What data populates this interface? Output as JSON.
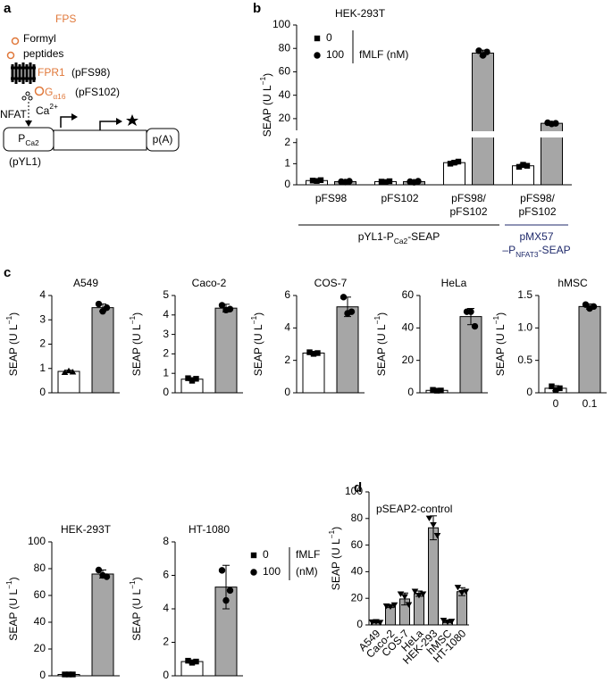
{
  "panel_labels": [
    "a",
    "b",
    "c",
    "d"
  ],
  "diagram": {
    "fps": "FPS",
    "peptides": [
      "Formyl",
      "peptides"
    ],
    "receptor": "FPR1",
    "receptor_plasmid": "(pFS98)",
    "g_protein": {
      "main": "G",
      "sub": "α16"
    },
    "g_plasmid": "(pFS102)",
    "calcium": {
      "main": "Ca",
      "sup": "2+"
    },
    "nfat": "NFAT",
    "promoter": {
      "main": "P",
      "sub": "Ca2"
    },
    "promoter_plasmid": "(pYL1)",
    "polya": "p(A)"
  },
  "chart_data": [
    {
      "type": "bar",
      "title": "HEK-293T",
      "categories": [
        [
          "pFS98"
        ],
        [
          "pFS102"
        ],
        [
          "pFS98/",
          "pFS102"
        ],
        [
          "pFS98/",
          "pFS102"
        ]
      ],
      "series": [
        {
          "name": "0",
          "color": "#ffffff",
          "marker": "square",
          "values": [
            0.2,
            0.15,
            1.05,
            0.9
          ],
          "errors": [
            0.03,
            0.03,
            0.08,
            0.08
          ],
          "points": [
            [
              0.2,
              0.18,
              0.22
            ],
            [
              0.15,
              0.13,
              0.17
            ],
            [
              1.0,
              1.05,
              1.1
            ],
            [
              0.85,
              0.95,
              0.9
            ]
          ]
        },
        {
          "name": "100",
          "color": "#a6a6a6",
          "marker": "circle",
          "values": [
            0.15,
            0.15,
            76,
            16
          ],
          "errors": [
            0.03,
            0.03,
            2.5,
            0.6
          ],
          "points": [
            [
              0.15,
              0.13,
              0.17
            ],
            [
              0.15,
              0.12,
              0.17
            ],
            [
              78,
              74,
              77
            ],
            [
              16.5,
              15.5,
              16
            ]
          ]
        }
      ],
      "legend_title": "fMLF (nM)",
      "y_label": [
        {
          "text": "SEAP (U L"
        },
        {
          "text": "−1",
          "sup": true
        },
        {
          "text": ")"
        }
      ],
      "ylim": [
        0,
        100
      ],
      "y_break": [
        2.2,
        10
      ],
      "yticks": [
        0,
        1,
        2,
        20,
        40,
        60,
        80,
        100
      ],
      "groups": [
        {
          "label": [
            [
              {
                "text": "pYL1-P"
              },
              {
                "text": "Ca2",
                "sub": true
              },
              {
                "text": "-SEAP"
              }
            ]
          ],
          "color": "#000000"
        },
        {
          "label": [
            [
              {
                "text": "pMX57"
              }
            ],
            [
              {
                "text": "–P"
              },
              {
                "text": "NFAT3",
                "sub": true
              },
              {
                "text": "-SEAP"
              }
            ]
          ],
          "color": "#1f2a6b"
        }
      ]
    },
    {
      "type": "bar",
      "title": "A549",
      "categories": [
        null,
        null
      ],
      "values": [
        0.88,
        3.5
      ],
      "errors": [
        0.05,
        0.15
      ],
      "points": [
        [
          0.85,
          0.92,
          0.87
        ],
        [
          3.65,
          3.35,
          3.5
        ]
      ],
      "colors": [
        "#ffffff",
        "#a6a6a6"
      ],
      "markers": [
        "triangle",
        "circle"
      ],
      "y_label": [
        {
          "text": "SEAP (U L"
        },
        {
          "text": "−1",
          "sup": true
        },
        {
          "text": ")"
        }
      ],
      "ylim": [
        0,
        4
      ],
      "yticks": [
        0,
        1,
        2,
        3,
        4
      ]
    },
    {
      "type": "bar",
      "title": "Caco-2",
      "categories": [
        null,
        null
      ],
      "values": [
        0.7,
        4.35
      ],
      "errors": [
        0.08,
        0.2
      ],
      "points": [
        [
          0.75,
          0.62,
          0.72
        ],
        [
          4.5,
          4.25,
          4.3
        ]
      ],
      "colors": [
        "#ffffff",
        "#a6a6a6"
      ],
      "markers": [
        "square",
        "circle"
      ],
      "y_label": [
        {
          "text": "SEAP (U L"
        },
        {
          "text": "−1",
          "sup": true
        },
        {
          "text": ")"
        }
      ],
      "ylim": [
        0,
        5
      ],
      "yticks": [
        0,
        1,
        2,
        3,
        4,
        5
      ]
    },
    {
      "type": "bar",
      "title": "COS-7",
      "categories": [
        null,
        null
      ],
      "values": [
        2.45,
        5.3
      ],
      "errors": [
        0.1,
        0.6
      ],
      "points": [
        [
          2.5,
          2.4,
          2.45
        ],
        [
          5.9,
          4.9,
          5.0
        ]
      ],
      "colors": [
        "#ffffff",
        "#a6a6a6"
      ],
      "markers": [
        "square",
        "circle"
      ],
      "y_label": [
        {
          "text": "SEAP (U L"
        },
        {
          "text": "−1",
          "sup": true
        },
        {
          "text": ")"
        }
      ],
      "ylim": [
        0,
        6
      ],
      "yticks": [
        0,
        2,
        4,
        6
      ]
    },
    {
      "type": "bar",
      "title": "HeLa",
      "categories": [
        null,
        null
      ],
      "values": [
        1.5,
        47
      ],
      "errors": [
        0.4,
        5
      ],
      "points": [
        [
          1.8,
          1.3,
          1.4
        ],
        [
          50,
          50,
          41
        ]
      ],
      "colors": [
        "#ffffff",
        "#a6a6a6"
      ],
      "markers": [
        "square",
        "circle"
      ],
      "y_label": [
        {
          "text": "SEAP (U L"
        },
        {
          "text": "−1",
          "sup": true
        },
        {
          "text": ")"
        }
      ],
      "ylim": [
        0,
        60
      ],
      "yticks": [
        0,
        20,
        40,
        60
      ]
    },
    {
      "type": "bar",
      "title": "hMSC",
      "categories": [
        "0",
        "0.1"
      ],
      "values": [
        0.07,
        1.33
      ],
      "errors": [
        0.04,
        0.04
      ],
      "points": [
        [
          0.1,
          0.04,
          0.07
        ],
        [
          1.36,
          1.3,
          1.33
        ]
      ],
      "colors": [
        "#ffffff",
        "#a6a6a6"
      ],
      "markers": [
        "square",
        "circle"
      ],
      "y_label": [
        {
          "text": "SEAP (U L"
        },
        {
          "text": "−1",
          "sup": true
        },
        {
          "text": ")"
        }
      ],
      "ylim": [
        0,
        1.5
      ],
      "yticks": [
        0,
        0.5,
        {
          "value": 1,
          "label": "1.0"
        },
        1.5
      ]
    },
    {
      "type": "bar",
      "title": "HEK-293T",
      "categories": [
        null,
        null
      ],
      "values": [
        1,
        76
      ],
      "errors": [
        0.3,
        3
      ],
      "points": [
        [
          1,
          1,
          1
        ],
        [
          79,
          75,
          74
        ]
      ],
      "colors": [
        "#ffffff",
        "#a6a6a6"
      ],
      "markers": [
        "square",
        "circle"
      ],
      "y_label": [
        {
          "text": "SEAP (U L"
        },
        {
          "text": "−1",
          "sup": true
        },
        {
          "text": ")"
        }
      ],
      "ylim": [
        0,
        100
      ],
      "yticks": [
        0,
        20,
        40,
        60,
        80,
        100
      ]
    },
    {
      "type": "bar",
      "title": "HT-1080",
      "categories": [
        null,
        null
      ],
      "values": [
        0.85,
        5.3
      ],
      "errors": [
        0.1,
        1.3
      ],
      "points": [
        [
          0.9,
          0.78,
          0.85
        ],
        [
          6.3,
          4.5,
          5.1
        ]
      ],
      "colors": [
        "#ffffff",
        "#a6a6a6"
      ],
      "markers": [
        "square",
        "circle"
      ],
      "legend": {
        "entries": [
          {
            "name": "0",
            "marker": "square"
          },
          {
            "name": "100",
            "marker": "circle"
          }
        ],
        "title": [
          "fMLF",
          "(nM)"
        ]
      },
      "y_label": [
        {
          "text": "SEAP (U L"
        },
        {
          "text": "−1",
          "sup": true
        },
        {
          "text": ")"
        }
      ],
      "ylim": [
        0,
        8
      ],
      "yticks": [
        0,
        2,
        4,
        6,
        8
      ]
    },
    {
      "type": "bar",
      "annotation": "pSEAP2-control",
      "categories": [
        "A549",
        "Caco-2",
        "COS-7",
        "HeLa",
        "HEK-293",
        "hMSC",
        "HT-1080"
      ],
      "values": [
        2,
        14,
        19.5,
        23.5,
        73,
        2.5,
        25
      ],
      "errors": [
        0.5,
        1,
        4.5,
        2,
        9,
        0.7,
        3
      ],
      "points": [
        [
          2,
          2.2,
          1.6
        ],
        [
          14,
          13.5,
          14.8
        ],
        [
          23,
          21,
          15
        ],
        [
          25,
          22,
          23
        ],
        [
          80,
          75,
          67
        ],
        [
          3.2,
          2,
          2.5
        ],
        [
          28,
          24,
          25
        ]
      ],
      "color": "#a6a6a6",
      "marker": "triangle-down",
      "y_label": [
        {
          "text": "SEAP (U L"
        },
        {
          "text": "−1",
          "sup": true
        },
        {
          "text": ")"
        }
      ],
      "ylim": [
        0,
        100
      ],
      "yticks": [
        0,
        20,
        40,
        60,
        80,
        100
      ]
    }
  ]
}
